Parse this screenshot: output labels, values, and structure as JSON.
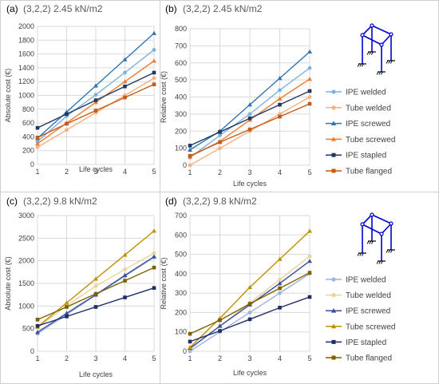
{
  "chart_data": [
    {
      "type": "line",
      "panel_label": "(a)",
      "title": "(3,2,2) 2.45 kN/m2",
      "xlabel": "Life cycles",
      "ylabel": "Absolute cost (€)",
      "x": [
        1,
        2,
        3,
        4,
        5
      ],
      "xlim": [
        1,
        5
      ],
      "ylim": [
        0,
        2000
      ],
      "yticks": [
        0,
        200,
        400,
        600,
        800,
        1000,
        1200,
        1400,
        1600,
        1800,
        2000
      ],
      "grid": true,
      "series": [
        {
          "name": "IPE welded",
          "color": "#7FB2DC",
          "values": [
            330,
            700,
            1010,
            1330,
            1660
          ]
        },
        {
          "name": "Tube welded",
          "color": "#F4B183",
          "values": [
            250,
            500,
            750,
            1000,
            1250
          ]
        },
        {
          "name": "IPE screwed",
          "color": "#2E75B6",
          "values": [
            380,
            760,
            1140,
            1520,
            1900
          ]
        },
        {
          "name": "Tube screwed",
          "color": "#ED7D31",
          "values": [
            300,
            600,
            900,
            1200,
            1500
          ]
        },
        {
          "name": "IPE stapled",
          "color": "#1F3864",
          "values": [
            530,
            730,
            930,
            1130,
            1330
          ]
        },
        {
          "name": "Tube flanged",
          "color": "#C55A11",
          "values": [
            390,
            590,
            780,
            970,
            1160
          ]
        }
      ]
    },
    {
      "type": "line",
      "panel_label": "(b)",
      "title": "(3,2,2) 2.45 kN/m2",
      "xlabel": "Life cycles",
      "ylabel": "Relative cost (€)",
      "x": [
        1,
        2,
        3,
        4,
        5
      ],
      "xlim": [
        1,
        5
      ],
      "ylim": [
        0,
        800
      ],
      "yticks": [
        0,
        100,
        200,
        300,
        400,
        500,
        600,
        700,
        800
      ],
      "grid": true,
      "legend_position": "right",
      "series": [
        {
          "name": "IPE welded",
          "color": "#7FB2DC",
          "values": [
            45,
            175,
            300,
            440,
            570
          ]
        },
        {
          "name": "Tube welded",
          "color": "#F4B183",
          "values": [
            0,
            100,
            200,
            300,
            400
          ]
        },
        {
          "name": "IPE screwed",
          "color": "#2E75B6",
          "values": [
            90,
            200,
            355,
            510,
            665
          ]
        },
        {
          "name": "Tube screwed",
          "color": "#ED7D31",
          "values": [
            50,
            140,
            265,
            390,
            505
          ]
        },
        {
          "name": "IPE stapled",
          "color": "#1F3864",
          "values": [
            115,
            195,
            275,
            355,
            435
          ]
        },
        {
          "name": "Tube flanged",
          "color": "#C55A11",
          "values": [
            55,
            135,
            210,
            285,
            360
          ]
        }
      ]
    },
    {
      "type": "line",
      "panel_label": "(c)",
      "title": "(3,2,2) 9.8 kN/m2",
      "xlabel": "Life cycles",
      "ylabel": "Absolute cost (€)",
      "x": [
        1,
        2,
        3,
        4,
        5
      ],
      "xlim": [
        1,
        5
      ],
      "ylim": [
        0,
        3000
      ],
      "yticks": [
        0,
        500,
        1000,
        1500,
        2000,
        2500,
        3000
      ],
      "grid": true,
      "series": [
        {
          "name": "IPE welded",
          "color": "#9DB3E0",
          "values": [
            390,
            810,
            1240,
            1660,
            2080
          ]
        },
        {
          "name": "Tube welded",
          "color": "#E6D49A",
          "values": [
            520,
            1010,
            1440,
            1810,
            2170
          ]
        },
        {
          "name": "IPE screwed",
          "color": "#3A4F9E",
          "values": [
            420,
            840,
            1250,
            1680,
            2090
          ]
        },
        {
          "name": "Tube screwed",
          "color": "#BF9000",
          "values": [
            540,
            1070,
            1600,
            2130,
            2660
          ]
        },
        {
          "name": "IPE stapled",
          "color": "#1F2E6B",
          "values": [
            560,
            770,
            980,
            1190,
            1400
          ]
        },
        {
          "name": "Tube flanged",
          "color": "#7F6000",
          "values": [
            700,
            980,
            1270,
            1560,
            1850
          ]
        }
      ]
    },
    {
      "type": "line",
      "panel_label": "(d)",
      "title": "(3,2,2) 9.8 kN/m2",
      "xlabel": "Life cycles",
      "ylabel": "Relative cost (€)",
      "x": [
        1,
        2,
        3,
        4,
        5
      ],
      "xlim": [
        1,
        5
      ],
      "ylim": [
        0,
        700
      ],
      "yticks": [
        0,
        100,
        200,
        300,
        400,
        500,
        600,
        700
      ],
      "grid": true,
      "legend_position": "right",
      "series": [
        {
          "name": "IPE welded",
          "color": "#9DB3E0",
          "values": [
            0,
            100,
            200,
            300,
            400
          ]
        },
        {
          "name": "Tube welded",
          "color": "#E6D49A",
          "values": [
            10,
            130,
            250,
            370,
            490
          ]
        },
        {
          "name": "IPE screwed",
          "color": "#3A4F9E",
          "values": [
            15,
            130,
            240,
            350,
            465
          ]
        },
        {
          "name": "Tube screwed",
          "color": "#BF9000",
          "values": [
            20,
            170,
            330,
            475,
            620
          ]
        },
        {
          "name": "IPE stapled",
          "color": "#1F2E6B",
          "values": [
            50,
            105,
            165,
            225,
            280
          ]
        },
        {
          "name": "Tube flanged",
          "color": "#7F6000",
          "values": [
            90,
            160,
            245,
            325,
            405
          ]
        }
      ]
    }
  ]
}
